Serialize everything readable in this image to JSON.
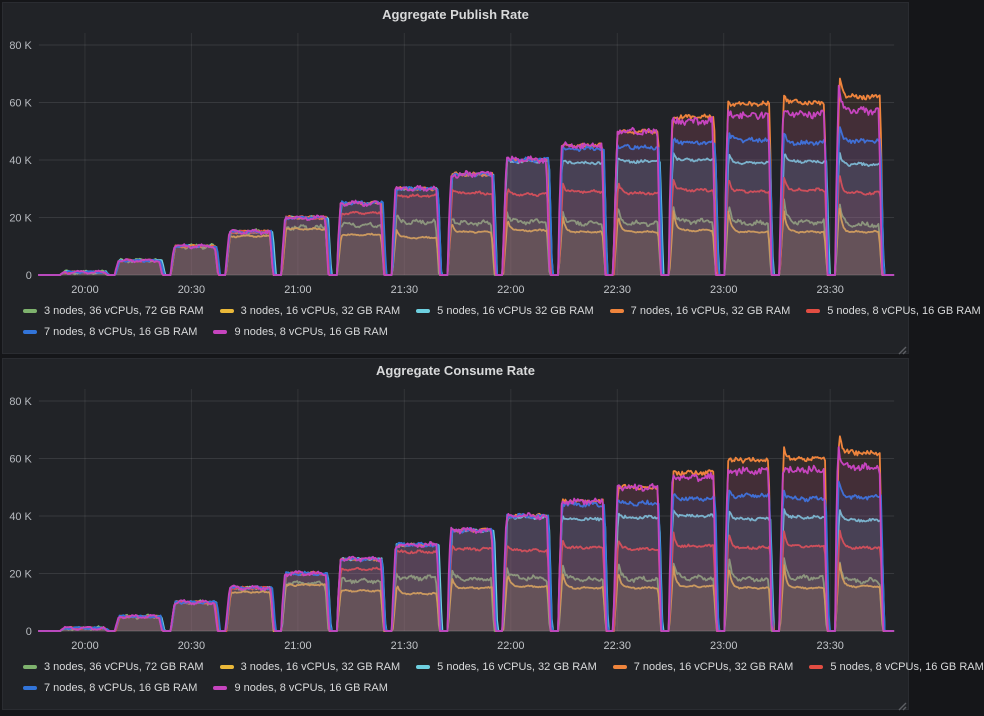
{
  "panels": [
    {
      "title": "Aggregate Publish Rate"
    },
    {
      "title": "Aggregate Consume Rate"
    }
  ],
  "chart_data": [
    {
      "type": "area",
      "title": "Aggregate Publish Rate",
      "x_tick_labels": [
        "20:00",
        "20:30",
        "21:00",
        "21:30",
        "22:00",
        "22:30",
        "23:00",
        "23:30"
      ],
      "y_tick_labels": [
        "0",
        "20 K",
        "40 K",
        "60 K",
        "80 K"
      ],
      "ylim_k": [
        0,
        80
      ],
      "grid": true,
      "legend_position": "bottom",
      "time_window": {
        "total_min": 241,
        "first_tick_min": 13,
        "tick_interval_min": 30
      },
      "steps": {
        "count": 15,
        "first_start_min": 6,
        "period_min": 15.6,
        "on_min": 12.2,
        "ramp_min": 1.2,
        "targets_k": [
          1,
          5,
          10,
          15,
          20,
          25,
          30,
          35,
          40,
          45,
          50,
          55,
          60,
          60,
          65
        ]
      },
      "noise_seed": 11,
      "series": [
        {
          "name": "3 nodes, 36 vCPUs, 72 GB RAM",
          "color": "#7EB26D",
          "wobble_k": 0.9,
          "rise_lead_min": 0,
          "fall_lag_min": 0,
          "plateaus_k": [
            1,
            5,
            10,
            15,
            16.5,
            17.5,
            18.5,
            18,
            18.5,
            18,
            18,
            18.5,
            18,
            18.5,
            17.5
          ]
        },
        {
          "name": "3 nodes, 16 vCPUs, 32 GB RAM",
          "color": "#EAB839",
          "wobble_k": 0.35,
          "rise_lead_min": 0,
          "fall_lag_min": 0.1,
          "plateaus_k": [
            1,
            5,
            10,
            13.5,
            16,
            14,
            13,
            15,
            15.5,
            15,
            15,
            15.5,
            15,
            15,
            15
          ],
          "peaks_k": {
            "14": 25
          }
        },
        {
          "name": "5 nodes, 16 vCPUs 32 GB RAM",
          "color": "#6ED0E0",
          "wobble_k": 0.4,
          "rise_lead_min": 0.05,
          "fall_lag_min": 0.6,
          "plateaus_k": [
            1,
            5,
            10,
            15,
            20,
            25,
            30,
            35,
            39.5,
            39,
            39.5,
            40,
            39,
            39.5,
            38.5
          ],
          "peaks_k": {
            "14": 43
          }
        },
        {
          "name": "7 nodes, 16 vCPUs, 32 GB RAM",
          "color": "#EF843C",
          "wobble_k": 0.5,
          "rise_lead_min": 0.1,
          "fall_lag_min": 0.2,
          "plateaus_k": [
            1,
            5,
            10,
            15,
            20,
            25,
            30,
            35,
            40,
            45,
            50,
            55,
            59.5,
            60,
            62
          ],
          "peaks_k": {
            "13": 64,
            "14": 70
          }
        },
        {
          "name": "5 nodes, 8 vCPUs, 16 GB RAM",
          "color": "#E24D42",
          "wobble_k": 0.45,
          "rise_lead_min": 0,
          "fall_lag_min": 0.35,
          "plateaus_k": [
            1,
            5,
            10,
            15,
            20,
            21.5,
            27.5,
            28.5,
            28,
            29,
            28.5,
            29.5,
            29,
            29.5,
            28.5
          ],
          "peaks_k": {
            "14": 36
          }
        },
        {
          "name": "7 nodes, 8 vCPUs, 16 GB RAM",
          "color": "#3274D9",
          "wobble_k": 0.55,
          "rise_lead_min": 0.1,
          "fall_lag_min": 0.5,
          "plateaus_k": [
            1,
            5,
            10,
            15,
            20,
            25,
            30,
            35,
            40,
            44,
            44.5,
            46,
            47,
            46,
            46.5
          ],
          "peaks_k": {
            "13": 50,
            "14": 53
          }
        },
        {
          "name": "9 nodes, 8 vCPUs, 16 GB RAM",
          "color": "#C644BE",
          "wobble_k": 0.8,
          "rise_lead_min": 0.25,
          "fall_lag_min": 0,
          "plateaus_k": [
            1,
            5,
            10,
            15,
            20,
            25,
            30,
            35,
            40,
            45,
            50,
            53.5,
            55.5,
            56,
            57
          ],
          "peaks_k": {
            "14": 65
          }
        }
      ]
    },
    {
      "type": "area",
      "title": "Aggregate Consume Rate",
      "x_tick_labels": [
        "20:00",
        "20:30",
        "21:00",
        "21:30",
        "22:00",
        "22:30",
        "23:00",
        "23:30"
      ],
      "y_tick_labels": [
        "0",
        "20 K",
        "40 K",
        "60 K",
        "80 K"
      ],
      "ylim_k": [
        0,
        80
      ],
      "grid": true,
      "legend_position": "bottom",
      "time_window": {
        "total_min": 241,
        "first_tick_min": 13,
        "tick_interval_min": 30
      },
      "steps": {
        "count": 15,
        "first_start_min": 6,
        "period_min": 15.6,
        "on_min": 12.2,
        "ramp_min": 1.2,
        "targets_k": [
          1,
          5,
          10,
          15,
          20,
          25,
          30,
          35,
          40,
          45,
          50,
          55,
          60,
          60,
          65
        ]
      },
      "noise_seed": 29,
      "series": [
        {
          "name": "3 nodes, 36 vCPUs, 72 GB RAM",
          "color": "#7EB26D",
          "wobble_k": 0.9,
          "rise_lead_min": 0,
          "fall_lag_min": 0,
          "plateaus_k": [
            1,
            5,
            10,
            15,
            16.5,
            17.5,
            18.5,
            18,
            18.5,
            18,
            18,
            18.5,
            18,
            18.5,
            17.5
          ]
        },
        {
          "name": "3 nodes, 16 vCPUs, 32 GB RAM",
          "color": "#EAB839",
          "wobble_k": 0.35,
          "rise_lead_min": 0,
          "fall_lag_min": 0.1,
          "plateaus_k": [
            1,
            5,
            10,
            13.5,
            16,
            14,
            13,
            15,
            15.5,
            15,
            15,
            15.5,
            15,
            15,
            15.5
          ],
          "peaks_k": {
            "14": 25
          }
        },
        {
          "name": "5 nodes, 16 vCPUs, 32 GB RAM",
          "color": "#6ED0E0",
          "wobble_k": 0.4,
          "rise_lead_min": 0.05,
          "fall_lag_min": 0.6,
          "plateaus_k": [
            1,
            5,
            10,
            15,
            20,
            25,
            30,
            35,
            39.5,
            39,
            39.5,
            40,
            39,
            39.5,
            38.5
          ],
          "peaks_k": {
            "14": 43
          }
        },
        {
          "name": "7 nodes, 16 vCPUs, 32 GB RAM",
          "color": "#EF843C",
          "wobble_k": 0.5,
          "rise_lead_min": 0.1,
          "fall_lag_min": 0.2,
          "plateaus_k": [
            1,
            5,
            10,
            15,
            20,
            25,
            30,
            35,
            40,
            45,
            50,
            55,
            59.5,
            60,
            62
          ],
          "peaks_k": {
            "13": 64,
            "14": 70
          }
        },
        {
          "name": "5 nodes, 8 vCPUs, 16 GB RAM",
          "color": "#E24D42",
          "wobble_k": 0.45,
          "rise_lead_min": 0,
          "fall_lag_min": 0.35,
          "plateaus_k": [
            1,
            5,
            10,
            15,
            20,
            21.5,
            27.5,
            28.5,
            28,
            29,
            28.5,
            29.5,
            29,
            29.5,
            29
          ],
          "peaks_k": {
            "14": 36
          }
        },
        {
          "name": "7 nodes, 8 vCPUs, 16 GB RAM",
          "color": "#3274D9",
          "wobble_k": 0.55,
          "rise_lead_min": 0.1,
          "fall_lag_min": 0.5,
          "plateaus_k": [
            1,
            5,
            10,
            15,
            20,
            25,
            30,
            35,
            40,
            44,
            44.5,
            46,
            47,
            46,
            46.5
          ],
          "peaks_k": {
            "13": 50,
            "14": 53
          }
        },
        {
          "name": "9 nodes, 8 vCPUs, 16 GB RAM",
          "color": "#C644BE",
          "wobble_k": 0.8,
          "rise_lead_min": 0.25,
          "fall_lag_min": 0,
          "plateaus_k": [
            1,
            5,
            10,
            15,
            20,
            25,
            30,
            35,
            40,
            45,
            50,
            53.5,
            55.5,
            56,
            57
          ],
          "peaks_k": {
            "14": 65
          }
        }
      ]
    }
  ]
}
